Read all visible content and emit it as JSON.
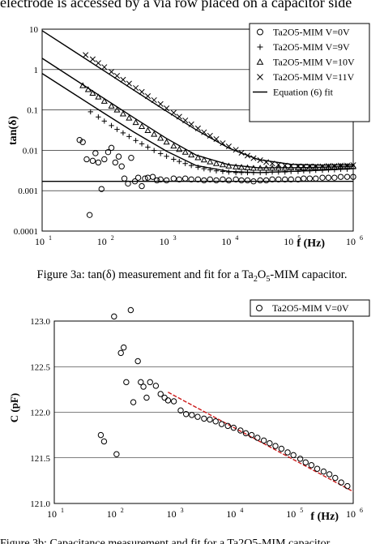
{
  "page": {
    "top_text": "electrode is accessed by a via row placed on a capacitor side",
    "caption_3a_prefix": "Figure 3a: tan(δ) measurement and fit for a Ta",
    "caption_3a_sub1": "2",
    "caption_3a_mid": "O",
    "caption_3a_sub2": "5",
    "caption_3a_suffix": "-MIM capacitor.",
    "bottom_text": "Figure 3b: Capacitance measurement and fit for a Ta2O5-MIM capacitor."
  },
  "chart_data": [
    {
      "type": "scatter",
      "title": "",
      "xlabel": "f (Hz)",
      "ylabel": "tan(δ)",
      "xscale": "log",
      "yscale": "log",
      "xlim": [
        10,
        1000000
      ],
      "ylim": [
        0.0001,
        10
      ],
      "x_ticks": [
        "10",
        "10",
        "10",
        "10",
        "10",
        "10"
      ],
      "x_tick_exponents": [
        "1",
        "2",
        "3",
        "4",
        "5",
        "6"
      ],
      "y_ticks": [
        "0.0001",
        "0.001",
        "0.01",
        "0.1",
        "1",
        "10"
      ],
      "grid": "horizontal",
      "legend": "top-right",
      "series": [
        {
          "name": "Ta2O5-MIM V=0V",
          "marker": "circle",
          "x": [
            40,
            45,
            52,
            58,
            65,
            72,
            80,
            90,
            100,
            115,
            130,
            150,
            170,
            190,
            210,
            240,
            270,
            310,
            350,
            400,
            450,
            500,
            600,
            700,
            800,
            1000,
            1300,
            1600,
            2000,
            2500,
            3200,
            4000,
            5000,
            6300,
            8000,
            10000,
            13000,
            16000,
            20000,
            25000,
            32000,
            40000,
            50000,
            63000,
            80000,
            100000,
            130000,
            160000,
            200000,
            250000,
            320000,
            400000,
            500000,
            630000,
            800000,
            1000000
          ],
          "y": [
            0.018,
            0.016,
            0.006,
            0.00025,
            0.0055,
            0.0085,
            0.005,
            0.0011,
            0.006,
            0.009,
            0.0115,
            0.005,
            0.007,
            0.004,
            0.002,
            0.0015,
            0.0065,
            0.0017,
            0.0021,
            0.0013,
            0.002,
            0.0021,
            0.0022,
            0.0018,
            0.0019,
            0.0018,
            0.002,
            0.0019,
            0.002,
            0.0019,
            0.0019,
            0.0018,
            0.0019,
            0.0018,
            0.0019,
            0.0018,
            0.0019,
            0.0018,
            0.0018,
            0.0017,
            0.0018,
            0.0018,
            0.0019,
            0.0019,
            0.0019,
            0.0019,
            0.0019,
            0.002,
            0.002,
            0.002,
            0.0021,
            0.0021,
            0.0021,
            0.0022,
            0.0022,
            0.0022
          ]
        },
        {
          "name": "Ta2O5-MIM V=9V",
          "marker": "plus",
          "x": [
            60,
            80,
            100,
            130,
            160,
            200,
            250,
            320,
            400,
            500,
            630,
            800,
            1000,
            1300,
            1600,
            2000,
            2500,
            3200,
            4000,
            5000,
            6300,
            8000,
            10000,
            13000,
            16000,
            20000,
            25000,
            32000,
            40000,
            50000,
            63000,
            80000,
            100000,
            130000,
            160000,
            200000,
            250000,
            320000,
            400000,
            500000,
            630000,
            800000,
            1000000
          ],
          "y": [
            0.09,
            0.067,
            0.053,
            0.041,
            0.033,
            0.027,
            0.022,
            0.0175,
            0.0145,
            0.012,
            0.0099,
            0.0083,
            0.0071,
            0.006,
            0.0053,
            0.0047,
            0.0042,
            0.0038,
            0.0035,
            0.0033,
            0.0031,
            0.003,
            0.0029,
            0.0028,
            0.0028,
            0.0028,
            0.0028,
            0.0028,
            0.0028,
            0.0029,
            0.0029,
            0.0029,
            0.003,
            0.003,
            0.0031,
            0.0031,
            0.0032,
            0.0032,
            0.0033,
            0.0033,
            0.0034,
            0.0034,
            0.0035
          ]
        },
        {
          "name": "Ta2O5-MIM V=10V",
          "marker": "triangle",
          "x": [
            45,
            55,
            65,
            80,
            100,
            130,
            160,
            200,
            250,
            320,
            400,
            500,
            630,
            800,
            1000,
            1300,
            1600,
            2000,
            2500,
            3200,
            4000,
            5000,
            6300,
            8000,
            10000,
            13000,
            16000,
            20000,
            25000,
            32000,
            40000,
            50000,
            63000,
            80000,
            100000,
            130000,
            160000,
            200000,
            250000,
            320000,
            400000,
            500000,
            630000,
            800000,
            1000000
          ],
          "y": [
            0.4,
            0.32,
            0.26,
            0.21,
            0.165,
            0.125,
            0.1,
            0.08,
            0.063,
            0.049,
            0.039,
            0.031,
            0.025,
            0.02,
            0.016,
            0.0128,
            0.0106,
            0.009,
            0.0077,
            0.0066,
            0.0058,
            0.0052,
            0.0047,
            0.0044,
            0.0041,
            0.0039,
            0.0038,
            0.0037,
            0.0036,
            0.0036,
            0.0036,
            0.0036,
            0.0036,
            0.0036,
            0.0037,
            0.0037,
            0.0037,
            0.0038,
            0.0038,
            0.0038,
            0.0039,
            0.0039,
            0.004,
            0.004,
            0.004
          ]
        },
        {
          "name": "Ta2O5-MIM V=11V",
          "marker": "cross",
          "x": [
            50,
            65,
            80,
            100,
            130,
            160,
            200,
            250,
            320,
            400,
            500,
            630,
            800,
            1000,
            1300,
            1600,
            2000,
            2500,
            3200,
            4000,
            5000,
            6300,
            8000,
            10000,
            13000,
            16000,
            20000,
            25000,
            32000,
            40000,
            50000,
            63000,
            80000,
            100000,
            130000,
            160000,
            200000,
            250000,
            320000,
            400000,
            500000,
            630000,
            800000,
            1000000
          ],
          "y": [
            2.3,
            1.8,
            1.45,
            1.15,
            0.88,
            0.7,
            0.56,
            0.45,
            0.35,
            0.28,
            0.22,
            0.175,
            0.14,
            0.11,
            0.085,
            0.068,
            0.055,
            0.044,
            0.035,
            0.028,
            0.023,
            0.019,
            0.015,
            0.0125,
            0.0103,
            0.0087,
            0.0074,
            0.0064,
            0.0057,
            0.0051,
            0.0047,
            0.0044,
            0.0042,
            0.0041,
            0.004,
            0.004,
            0.004,
            0.004,
            0.004,
            0.0041,
            0.0041,
            0.0042,
            0.0042,
            0.0043
          ]
        },
        {
          "name": "Equation (6) fit",
          "kind": "fit-lines",
          "color": "#000000",
          "lines": [
            {
              "x": [
                10,
                30,
                100,
                300,
                1000,
                3000,
                10000,
                30000,
                100000,
                300000,
                1000000
              ],
              "y": [
                9.2,
                3.07,
                0.92,
                0.307,
                0.093,
                0.032,
                0.0114,
                0.0059,
                0.0045,
                0.0043,
                0.0044
              ]
            },
            {
              "x": [
                10,
                30,
                100,
                300,
                1000,
                3000,
                10000,
                30000,
                100000,
                300000,
                1000000
              ],
              "y": [
                1.9,
                0.635,
                0.19,
                0.064,
                0.0196,
                0.0076,
                0.0044,
                0.0037,
                0.0037,
                0.0038,
                0.004
              ]
            },
            {
              "x": [
                10,
                30,
                100,
                300,
                1000,
                3000,
                10000,
                30000,
                100000,
                300000,
                1000000
              ],
              "y": [
                0.8,
                0.27,
                0.082,
                0.0282,
                0.0095,
                0.0042,
                0.003,
                0.0028,
                0.003,
                0.0032,
                0.0035
              ]
            },
            {
              "x": [
                10,
                1000000
              ],
              "y": [
                0.0017,
                0.0017
              ]
            }
          ]
        }
      ]
    },
    {
      "type": "scatter",
      "title": "",
      "xlabel": "f (Hz)",
      "ylabel": "C (pF)",
      "xscale": "log",
      "yscale": "linear",
      "xlim": [
        10,
        1000000
      ],
      "ylim": [
        121.0,
        123.0
      ],
      "x_ticks": [
        "10",
        "10",
        "10",
        "10",
        "10",
        "10"
      ],
      "x_tick_exponents": [
        "1",
        "2",
        "3",
        "4",
        "5",
        "6"
      ],
      "y_ticks": [
        "121.0",
        "121.5",
        "122.0",
        "122.5",
        "123.0"
      ],
      "grid": "horizontal",
      "legend": "top-right",
      "series": [
        {
          "name": "Ta2O5-MIM V=0V",
          "marker": "circle",
          "x": [
            60,
            68,
            100,
            110,
            130,
            145,
            160,
            190,
            210,
            250,
            280,
            310,
            350,
            400,
            500,
            600,
            700,
            800,
            1000,
            1300,
            1600,
            2000,
            2500,
            3200,
            4000,
            5000,
            6300,
            8000,
            10000,
            13000,
            16000,
            20000,
            25000,
            32000,
            40000,
            50000,
            63000,
            80000,
            100000,
            130000,
            160000,
            200000,
            250000,
            320000,
            400000,
            500000,
            630000,
            800000
          ],
          "y": [
            121.75,
            121.68,
            123.05,
            121.54,
            122.65,
            122.71,
            122.33,
            123.12,
            122.11,
            122.56,
            122.33,
            122.28,
            122.16,
            122.33,
            122.29,
            122.2,
            122.16,
            122.13,
            122.12,
            122.02,
            121.98,
            121.97,
            121.95,
            121.93,
            121.92,
            121.9,
            121.87,
            121.85,
            121.83,
            121.8,
            121.77,
            121.75,
            121.72,
            121.69,
            121.66,
            121.63,
            121.6,
            121.56,
            121.53,
            121.49,
            121.45,
            121.42,
            121.38,
            121.35,
            121.32,
            121.28,
            121.23,
            121.19
          ]
        },
        {
          "name": "",
          "kind": "fit-line",
          "color": "#cc1a1a",
          "x": [
            800,
            1000000
          ],
          "y": [
            122.22,
            121.13
          ]
        }
      ]
    }
  ]
}
